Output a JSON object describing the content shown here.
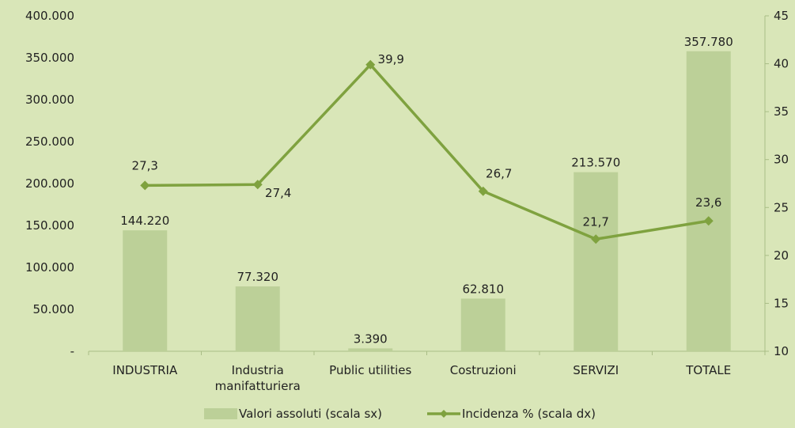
{
  "chart_data": {
    "type": "bar",
    "categories": [
      [
        "INDUSTRIA"
      ],
      [
        "Industria",
        "manifatturiera"
      ],
      [
        "Public utilities"
      ],
      [
        "Costruzioni"
      ],
      [
        "SERVIZI"
      ],
      [
        "TOTALE"
      ]
    ],
    "series": [
      {
        "name": "Valori assoluti (scala sx)",
        "type": "bar",
        "axis": "left",
        "color": "#bcd098",
        "values": [
          144220,
          77320,
          3390,
          62810,
          213570,
          357780
        ],
        "labels": [
          "144.220",
          "77.320",
          "3.390",
          "62.810",
          "213.570",
          "357.780"
        ]
      },
      {
        "name": "Incidenza % (scala dx)",
        "type": "line",
        "axis": "right",
        "color": "#7fa23f",
        "values": [
          27.3,
          27.4,
          39.9,
          26.7,
          21.7,
          23.6
        ],
        "labels": [
          "27,3",
          "27,4",
          "39,9",
          "26,7",
          "21,7",
          "23,6"
        ]
      }
    ],
    "y_left": {
      "min": 0,
      "max": 400000,
      "ticks": [
        0,
        50000,
        100000,
        150000,
        200000,
        250000,
        300000,
        350000,
        400000
      ],
      "tick_labels": [
        "-",
        "50.000",
        "100.000",
        "150.000",
        "200.000",
        "250.000",
        "300.000",
        "350.000",
        "400.000"
      ]
    },
    "y_right": {
      "min": 10,
      "max": 45,
      "ticks": [
        10,
        15,
        20,
        25,
        30,
        35,
        40,
        45
      ],
      "tick_labels": [
        "10",
        "15",
        "20",
        "25",
        "30",
        "35",
        "40",
        "45"
      ]
    },
    "grid": false,
    "legend": "bottom",
    "colors": {
      "background": "#d9e6b8",
      "axis": "#a9bd86"
    }
  }
}
